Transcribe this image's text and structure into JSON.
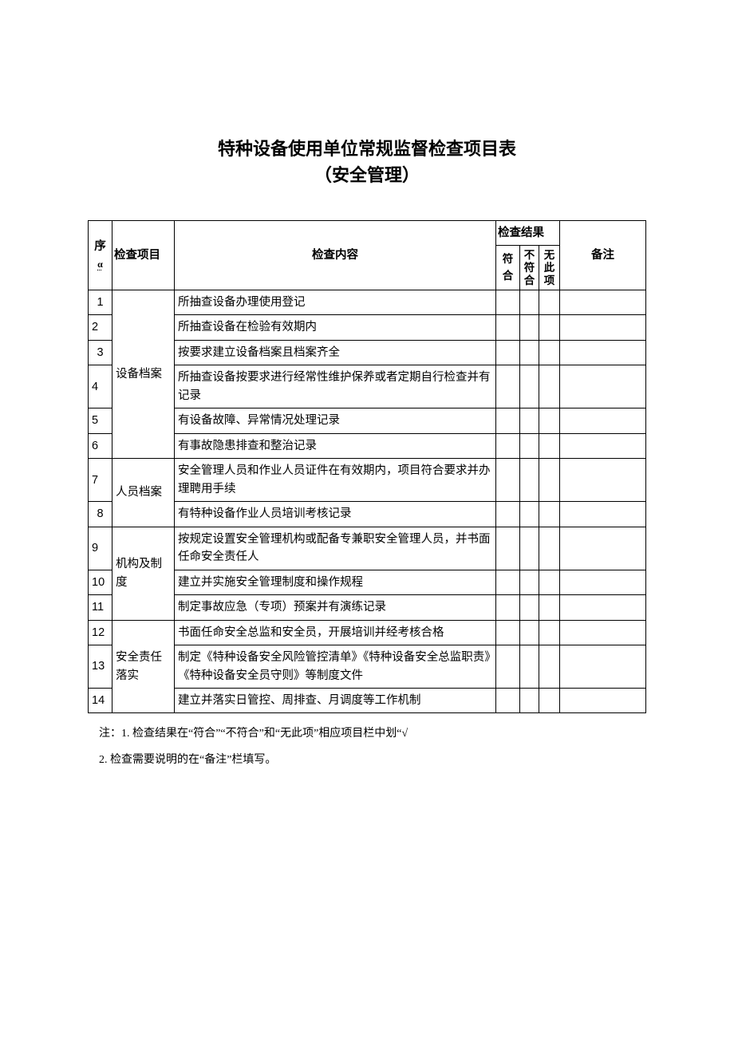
{
  "title_line1": "特种设备使用单位常规监督检查项目表",
  "title_line2": "（安全管理）",
  "headers": {
    "seq_prefix": "序",
    "seq_suffix": "α",
    "item": "检查项目",
    "content": "检查内容",
    "result_group": "检查结果",
    "result_yes": "符合",
    "result_no1": "不",
    "result_no2": "符",
    "result_no3": "合",
    "result_na1": "无",
    "result_na2": "此",
    "result_na3": "项",
    "remark": "备注"
  },
  "groups": [
    {
      "item": "设备档案",
      "rows": [
        {
          "seq": "1",
          "align": "center",
          "content": "所抽查设备办理使用登记",
          "blue": false
        },
        {
          "seq": "2",
          "align": "left",
          "content": "所抽查设备在检验有效期内",
          "blue": false
        },
        {
          "seq": "3",
          "align": "center",
          "content": "按要求建立设备档案且档案齐全",
          "blue": false
        },
        {
          "seq": "4",
          "align": "left",
          "content": "所抽查设备按要求进行经常性维护保养或者定期自行检查并有记录",
          "blue": false
        },
        {
          "seq": "5",
          "align": "left",
          "content": "有设备故障、异常情况处理记录",
          "blue": false
        },
        {
          "seq": "6",
          "align": "left",
          "content": "有事故隐患排查和整治记录",
          "blue": false
        }
      ]
    },
    {
      "item": "人员档案",
      "rows": [
        {
          "seq": "7",
          "align": "left",
          "content": "安全管理人员和作业人员证件在有效期内，项目符合要求并办理聘用手续",
          "blue": false
        },
        {
          "seq": "8",
          "align": "center",
          "content": "有特种设备作业人员培训考核记录",
          "blue": false
        }
      ]
    },
    {
      "item": "机构及制度",
      "rows": [
        {
          "seq": "9",
          "align": "left",
          "content": "按规定设置安全管理机构或配备专兼职安全管理人员，并书面任命安全责任人",
          "blue": false
        },
        {
          "seq": "10",
          "align": "left",
          "content": "建立并实施安全管理制度和操作规程",
          "blue": false
        },
        {
          "seq": "11",
          "align": "left",
          "content": "制定事故应急（专项）预案并有演练记录",
          "blue": false
        }
      ]
    },
    {
      "item": "安全责任落实",
      "rows": [
        {
          "seq": "12",
          "align": "left",
          "content": "书面任命安全总监和安全员，开展培训并经考核合格",
          "blue": true
        },
        {
          "seq": "13",
          "align": "left",
          "content": "制定《特种设备安全风险管控清单》《特种设备安全总监职责》《特种设备安全员守则》等制度文件",
          "blue": true
        },
        {
          "seq": "14",
          "align": "left",
          "content": "建立并落实日管控、周排查、月调度等工作机制",
          "blue": true
        }
      ]
    }
  ],
  "notes": {
    "n1": "注：1. 检查结果在“符合”“不符合”和“无此项”相应项目栏中划“√",
    "n2": "2. 检查需要说明的在“备注”栏填写。"
  }
}
